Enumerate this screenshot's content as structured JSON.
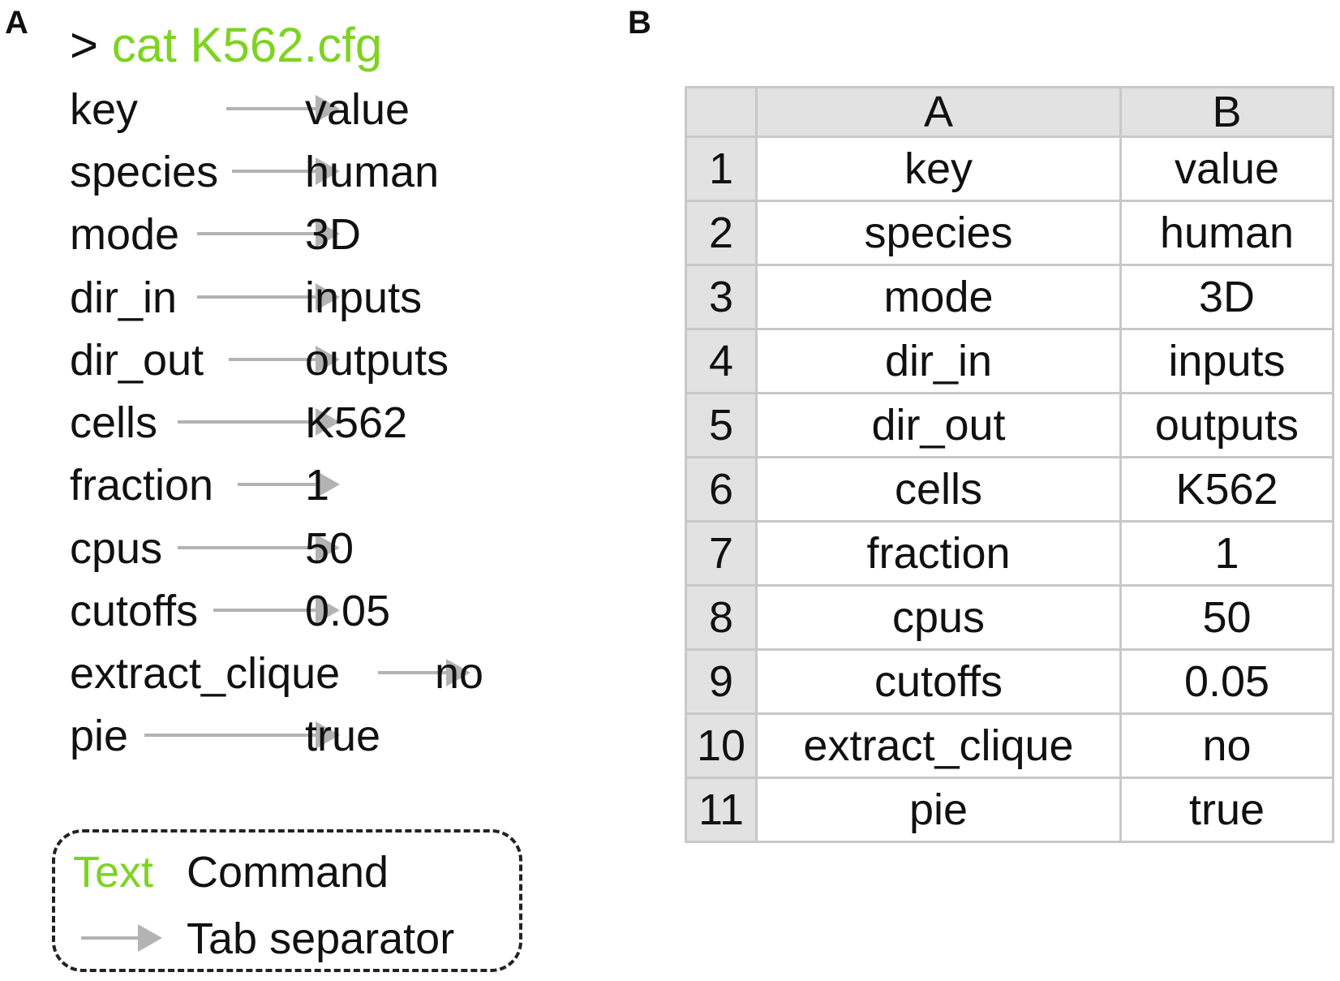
{
  "panel_labels": {
    "a": "A",
    "b": "B"
  },
  "terminal": {
    "prompt": ">",
    "command": "cat K562.cfg"
  },
  "config_rows": [
    {
      "key": "key",
      "value": "value"
    },
    {
      "key": "species",
      "value": "human"
    },
    {
      "key": "mode",
      "value": "3D"
    },
    {
      "key": "dir_in",
      "value": "inputs"
    },
    {
      "key": "dir_out",
      "value": "outputs"
    },
    {
      "key": "cells",
      "value": "K562"
    },
    {
      "key": "fraction",
      "value": "1"
    },
    {
      "key": "cpus",
      "value": "50"
    },
    {
      "key": "cutoffs",
      "value": "0.05"
    },
    {
      "key": "extract_clique",
      "value": "no"
    },
    {
      "key": "pie",
      "value": "true"
    }
  ],
  "legend": {
    "text_swatch": "Text",
    "text_label": "Command",
    "tab_label": "Tab separator"
  },
  "spreadsheet": {
    "column_headers": [
      "",
      "A",
      "B"
    ],
    "rows": [
      {
        "n": "1",
        "a": "key",
        "b": "value"
      },
      {
        "n": "2",
        "a": "species",
        "b": "human"
      },
      {
        "n": "3",
        "a": "mode",
        "b": "3D"
      },
      {
        "n": "4",
        "a": "dir_in",
        "b": "inputs"
      },
      {
        "n": "5",
        "a": "dir_out",
        "b": "outputs"
      },
      {
        "n": "6",
        "a": "cells",
        "b": "K562"
      },
      {
        "n": "7",
        "a": "fraction",
        "b": "1"
      },
      {
        "n": "8",
        "a": "cpus",
        "b": "50"
      },
      {
        "n": "9",
        "a": "cutoffs",
        "b": "0.05"
      },
      {
        "n": "10",
        "a": "extract_clique",
        "b": "no"
      },
      {
        "n": "11",
        "a": "pie",
        "b": "true"
      }
    ]
  },
  "colors": {
    "command_green": "#7ed321",
    "arrow_gray": "#b3b3b3",
    "header_gray": "#e2e2e2",
    "grid_gray": "#c8c8c8"
  }
}
